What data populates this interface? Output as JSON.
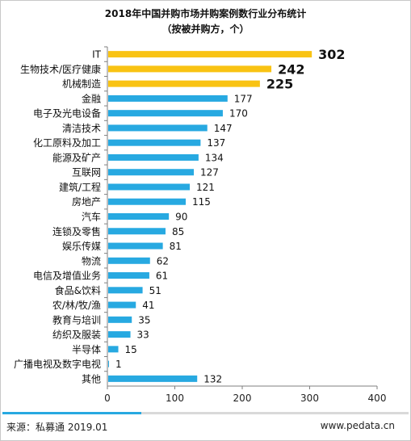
{
  "title": "2018年中国并购市场并购案例数行业分布统计",
  "subtitle": "（按被并购方，个）",
  "source": "来源：私募通 2019.01",
  "site": "www.pedata.cn",
  "colors": {
    "highlight": "#f9c313",
    "normal": "#27a9e1",
    "axis": "#7f7f7f"
  },
  "chart_data": {
    "type": "bar",
    "orientation": "horizontal",
    "title": "2018年中国并购市场并购案例数行业分布统计",
    "subtitle": "（按被并购方，个）",
    "xlim": [
      0,
      400
    ],
    "xticks": [
      0,
      100,
      200,
      300,
      400
    ],
    "grid": false,
    "categories": [
      "IT",
      "生物技术/医疗健康",
      "机械制造",
      "金融",
      "电子及光电设备",
      "清洁技术",
      "化工原料及加工",
      "能源及矿产",
      "互联网",
      "建筑/工程",
      "房地产",
      "汽车",
      "连锁及零售",
      "娱乐传媒",
      "物流",
      "电信及增值业务",
      "食品&饮料",
      "农/林/牧/渔",
      "教育与培训",
      "纺织及服装",
      "半导体",
      "广播电视及数字电视",
      "其他"
    ],
    "values": [
      302,
      242,
      225,
      177,
      170,
      147,
      137,
      134,
      127,
      121,
      115,
      90,
      85,
      81,
      62,
      61,
      51,
      41,
      35,
      33,
      15,
      1,
      132
    ],
    "highlighted": [
      "IT",
      "生物技术/医疗健康",
      "机械制造"
    ]
  }
}
